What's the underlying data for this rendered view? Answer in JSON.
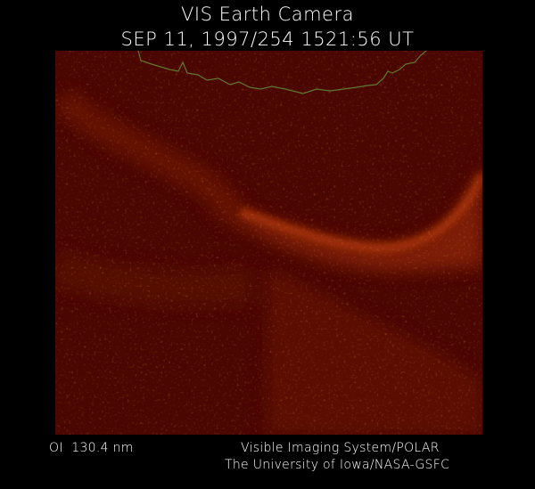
{
  "header": {
    "title": "VIS Earth Camera",
    "timestamp": "SEP 11, 1997/254 1521:56 UT"
  },
  "footer": {
    "wavelength": "OI  130.4 nm",
    "instrument": "Visible Imaging System/POLAR",
    "credit": "The University of Iowa/NASA-GSFC"
  }
}
